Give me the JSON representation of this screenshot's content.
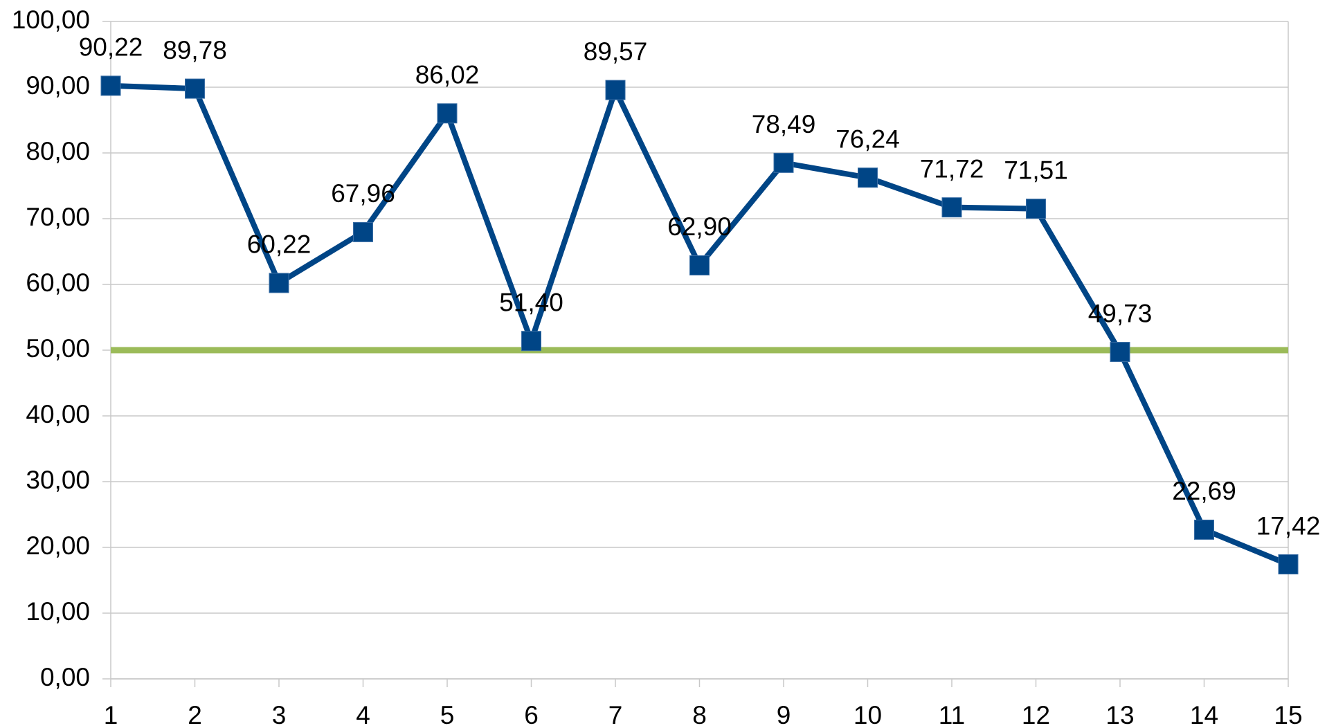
{
  "chart_data": {
    "type": "line",
    "categories": [
      "1",
      "2",
      "3",
      "4",
      "5",
      "6",
      "7",
      "8",
      "9",
      "10",
      "11",
      "12",
      "13",
      "14",
      "15"
    ],
    "series": [
      {
        "color": "#004586",
        "values": [
          90.22,
          89.78,
          60.22,
          67.96,
          86.02,
          51.4,
          89.57,
          62.9,
          78.49,
          76.24,
          71.72,
          71.51,
          49.73,
          22.69,
          17.42
        ],
        "value_labels": [
          "90,22",
          "89,78",
          "60,22",
          "67,96",
          "86,02",
          "51,40",
          "89,57",
          "62,90",
          "78,49",
          "76,24",
          "71,72",
          "71,51",
          "49,73",
          "22,69",
          "17,42"
        ],
        "markers": "square"
      },
      {
        "color": "#9bbb59",
        "values": [
          50,
          50,
          50,
          50,
          50,
          50,
          50,
          50,
          50,
          50,
          50,
          50,
          50,
          50,
          50
        ]
      }
    ],
    "ylim": [
      0,
      100
    ],
    "yticks": [
      {
        "value": 0,
        "label": "0,00"
      },
      {
        "value": 10,
        "label": "10,00"
      },
      {
        "value": 20,
        "label": "20,00"
      },
      {
        "value": 30,
        "label": "30,00"
      },
      {
        "value": 40,
        "label": "40,00"
      },
      {
        "value": 50,
        "label": "50,00"
      },
      {
        "value": 60,
        "label": "60,00"
      },
      {
        "value": 70,
        "label": "70,00"
      },
      {
        "value": 80,
        "label": "80,00"
      },
      {
        "value": 90,
        "label": "90,00"
      },
      {
        "value": 100,
        "label": "100,00"
      }
    ],
    "grid": true
  }
}
